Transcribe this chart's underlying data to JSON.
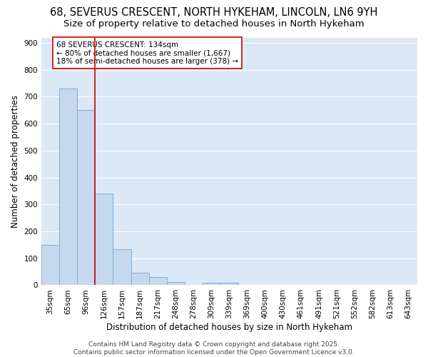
{
  "title_line1": "68, SEVERUS CRESCENT, NORTH HYKEHAM, LINCOLN, LN6 9YH",
  "title_line2": "Size of property relative to detached houses in North Hykeham",
  "xlabel": "Distribution of detached houses by size in North Hykeham",
  "ylabel": "Number of detached properties",
  "footer_line1": "Contains HM Land Registry data © Crown copyright and database right 2025.",
  "footer_line2": "Contains public sector information licensed under the Open Government Licence v3.0.",
  "annotation_line1": "68 SEVERUS CRESCENT: 134sqm",
  "annotation_line2": "← 80% of detached houses are smaller (1,667)",
  "annotation_line3": "18% of semi-detached houses are larger (378) →",
  "bar_values": [
    150,
    730,
    650,
    340,
    135,
    45,
    30,
    12,
    0,
    8,
    8,
    0,
    0,
    0,
    0,
    0,
    0,
    0,
    0,
    0,
    0
  ],
  "categories": [
    "35sqm",
    "65sqm",
    "96sqm",
    "126sqm",
    "157sqm",
    "187sqm",
    "217sqm",
    "248sqm",
    "278sqm",
    "309sqm",
    "339sqm",
    "369sqm",
    "400sqm",
    "430sqm",
    "461sqm",
    "491sqm",
    "521sqm",
    "552sqm",
    "582sqm",
    "613sqm",
    "643sqm"
  ],
  "bar_color": "#c5d8ed",
  "bar_edge_color": "#7fadd4",
  "vertical_line_x": 2.5,
  "vertical_line_color": "#cc0000",
  "plot_bg_color": "#dce8f5",
  "fig_bg_color": "#ffffff",
  "grid_color": "#ffffff",
  "ylim": [
    0,
    920
  ],
  "yticks": [
    0,
    100,
    200,
    300,
    400,
    500,
    600,
    700,
    800,
    900
  ],
  "title_fontsize": 10.5,
  "subtitle_fontsize": 9.5,
  "axis_label_fontsize": 8.5,
  "tick_fontsize": 7.5,
  "annotation_fontsize": 7.5,
  "footer_fontsize": 6.5
}
